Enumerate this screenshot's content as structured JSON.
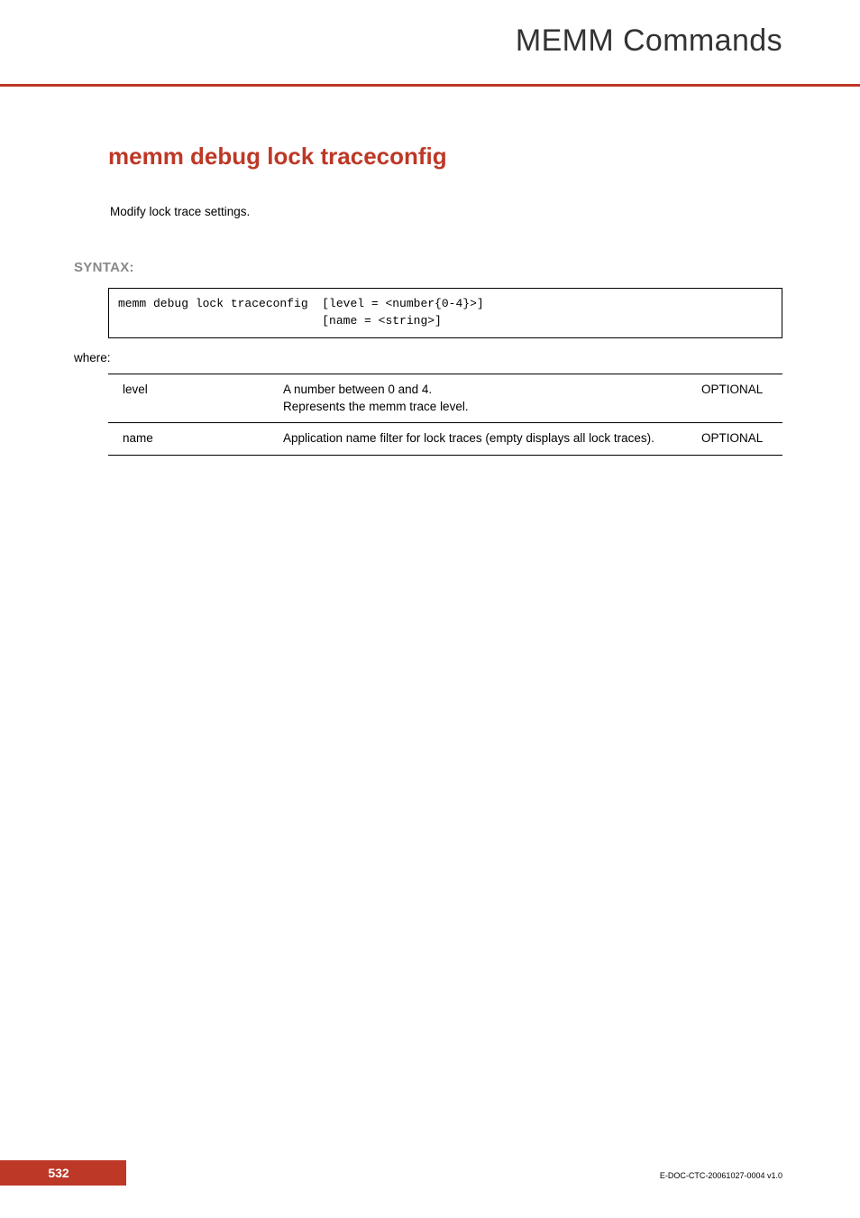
{
  "header": {
    "title": "MEMM Commands"
  },
  "section": {
    "heading": "memm debug lock traceconfig",
    "description": "Modify lock trace settings.",
    "syntax_label": "SYNTAX:",
    "syntax_code": "memm debug lock traceconfig  [level = <number{0-4}>]\n                             [name = <string>]",
    "where_label": "where:",
    "params": [
      {
        "name": "level",
        "desc": "A number between 0 and 4.\nRepresents the memm trace level.",
        "opt": "OPTIONAL"
      },
      {
        "name": "name",
        "desc": "Application name filter for lock traces (empty displays all lock traces).",
        "opt": "OPTIONAL"
      }
    ]
  },
  "footer": {
    "page_number": "532",
    "doc_id": "E-DOC-CTC-20061027-0004 v1.0"
  },
  "colors": {
    "accent": "#bd3826",
    "gray_label": "#888888",
    "text": "#000000",
    "bg": "#ffffff",
    "header_text": "#333333"
  }
}
